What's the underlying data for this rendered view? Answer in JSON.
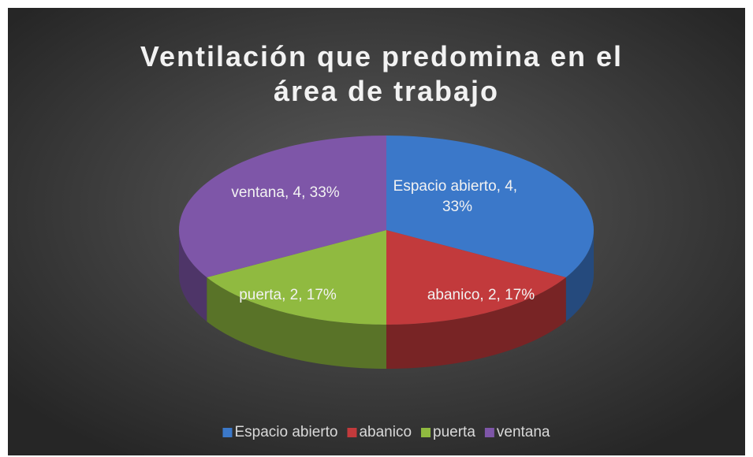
{
  "chart_data": {
    "type": "pie",
    "title": "Ventilación que predomina en el área de trabajo",
    "categories": [
      "Espacio abierto",
      "abanico",
      "puerta",
      "ventana"
    ],
    "values": [
      4,
      2,
      2,
      4
    ],
    "value_labels": [
      "Espacio abierto, 4, 33%",
      "abanico, 2, 17%",
      "puerta, 2, 17%",
      "ventana, 4, 33%"
    ],
    "colors": [
      "#3b78c9",
      "#c23a3c",
      "#90ba40",
      "#7e56a8"
    ],
    "legend": "bottom"
  }
}
